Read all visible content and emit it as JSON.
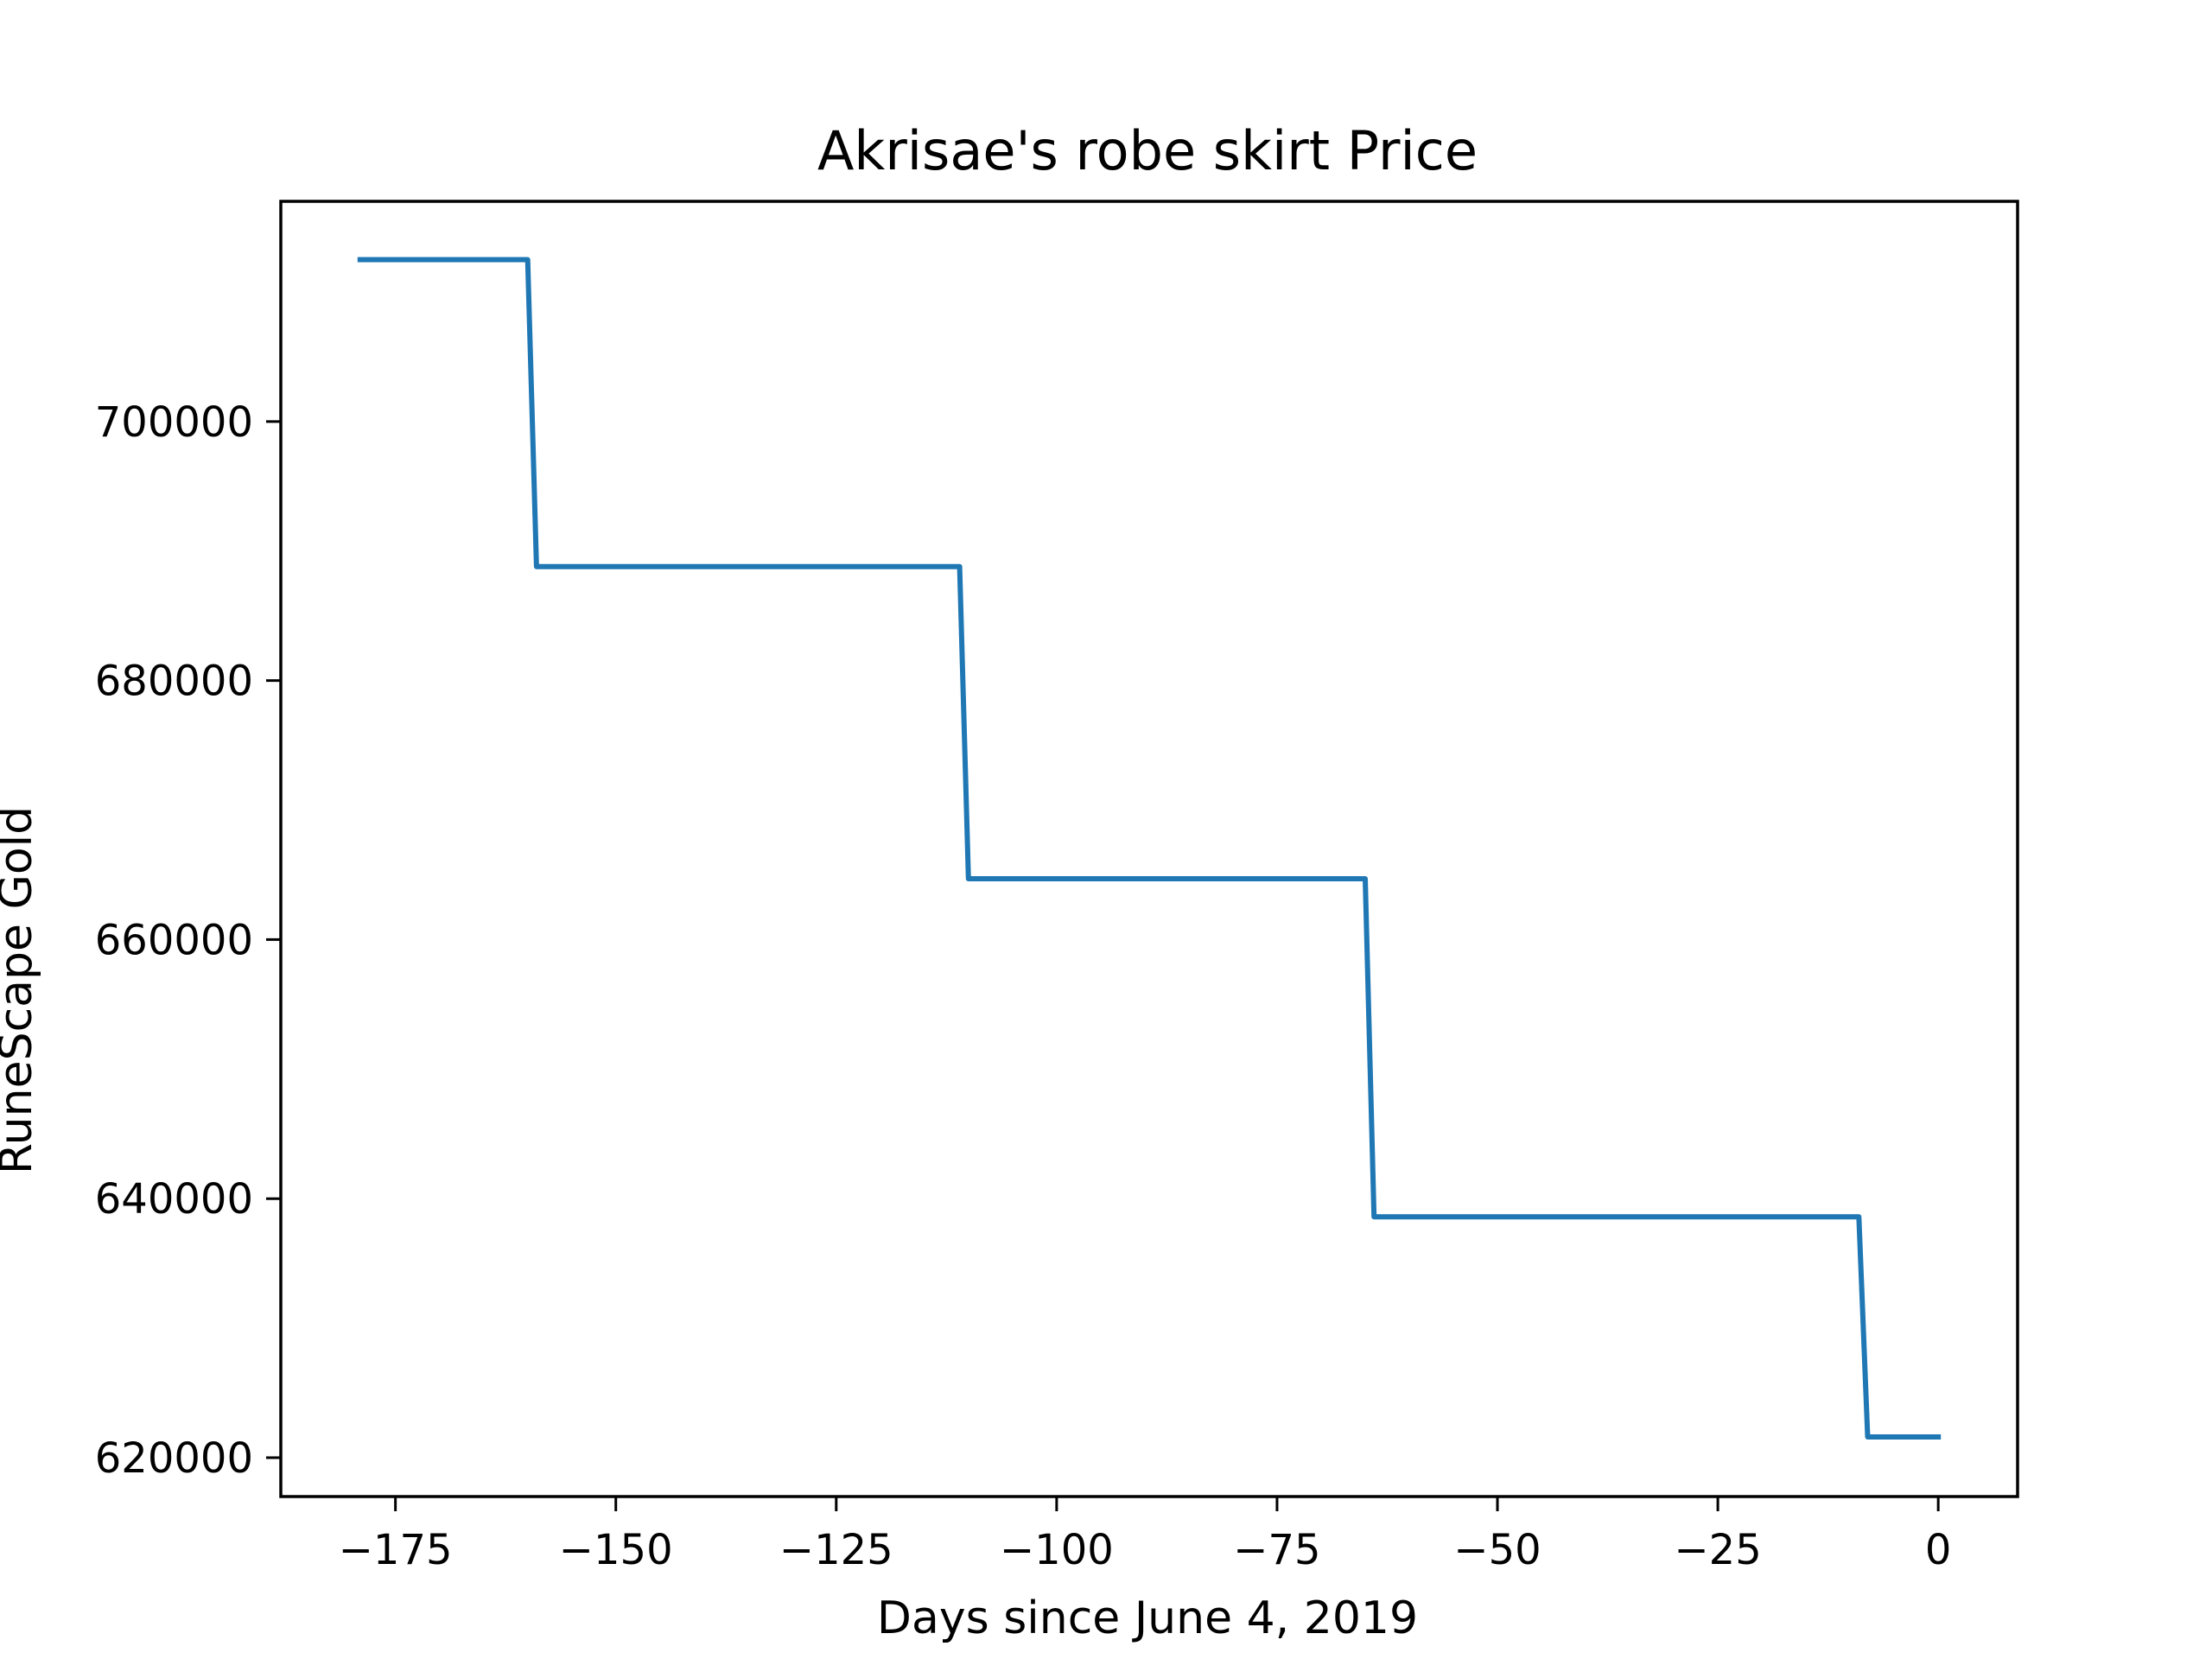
{
  "chart_data": {
    "type": "line",
    "title": "Akrisae's robe skirt Price",
    "xlabel": "Days since June 4, 2019",
    "ylabel": "RuneScape Gold",
    "xlim": [
      -188,
      9
    ],
    "ylim": [
      617000,
      717000
    ],
    "x_ticks": [
      -175,
      -150,
      -125,
      -100,
      -75,
      -50,
      -25,
      0
    ],
    "x_tick_labels": [
      "−175",
      "−150",
      "−125",
      "−100",
      "−75",
      "−50",
      "−25",
      "0"
    ],
    "y_ticks": [
      620000,
      640000,
      660000,
      680000,
      700000
    ],
    "y_tick_labels": [
      "620000",
      "640000",
      "660000",
      "680000",
      "700000"
    ],
    "grid": false,
    "legend": "none",
    "series": [
      {
        "color": "#1f77b4",
        "x": [
          -179,
          -160,
          -159,
          -111,
          -110,
          -65,
          -64,
          -9,
          -8,
          0
        ],
        "y": [
          712500,
          712500,
          688800,
          688800,
          664700,
          664700,
          638600,
          638600,
          621600,
          621600
        ]
      }
    ]
  }
}
